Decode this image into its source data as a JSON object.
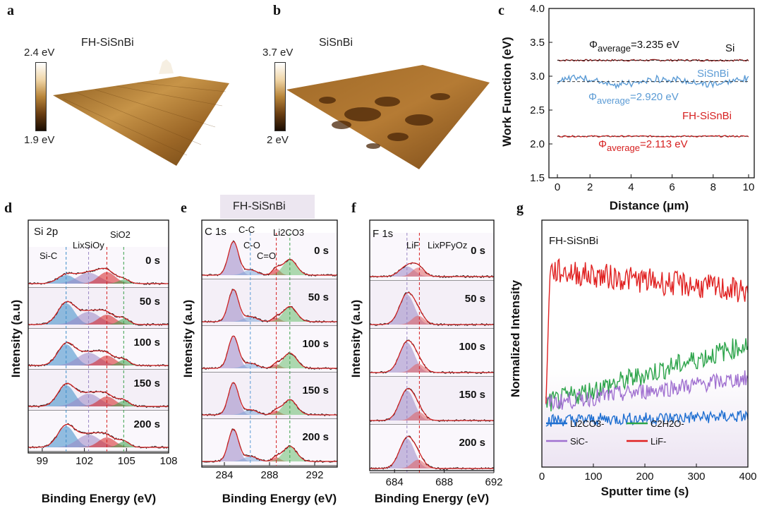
{
  "panels": {
    "a": {
      "letter": "a",
      "title": "FH-SiSnBi",
      "scale_max": "2.4 eV",
      "scale_min": "1.9 eV"
    },
    "b": {
      "letter": "b",
      "title": "SiSnBi",
      "scale_max": "3.7 eV",
      "scale_min": "2 eV"
    },
    "c": {
      "letter": "c"
    },
    "d": {
      "letter": "d"
    },
    "e": {
      "letter": "e",
      "header": "FH-SiSnBi"
    },
    "f": {
      "letter": "f"
    },
    "g": {
      "letter": "g"
    }
  },
  "colors": {
    "si": "#8b1a1a",
    "sisnbi": "#5b9bd5",
    "fh": "#d62020",
    "li2co3": "#1f6fd1",
    "c2h2o": "#2ca44a",
    "sic": "#a070d0",
    "lif": "#e02020"
  },
  "chart_data": [
    {
      "type": "line",
      "panel": "c",
      "xlabel": "Distance (μm)",
      "ylabel": "Work Function (eV)",
      "xlim": [
        0,
        10
      ],
      "ylim": [
        1.5,
        4.0
      ],
      "xticks": [
        "0",
        "2",
        "4",
        "6",
        "8",
        "10"
      ],
      "yticks": [
        "1.5",
        "2.0",
        "2.5",
        "3.0",
        "3.5",
        "4.0"
      ],
      "series": [
        {
          "name": "Si",
          "average": 3.235,
          "average_label_pre": "Φ",
          "average_label_sub": "average",
          "average_label_post": "=3.235 eV"
        },
        {
          "name": "SiSnBi",
          "average": 2.92,
          "average_label_pre": "Φ",
          "average_label_sub": "average",
          "average_label_post": "=2.920 eV"
        },
        {
          "name": "FH-SiSnBi",
          "average": 2.113,
          "average_label_pre": "Φ",
          "average_label_sub": "average",
          "average_label_post": "=2.113 eV"
        }
      ]
    },
    {
      "type": "line",
      "panel": "d",
      "xlabel": "Binding Energy (eV)",
      "ylabel": "Intensity (a.u)",
      "xlim": [
        98,
        108
      ],
      "xticks": [
        "99",
        "102",
        "105",
        "108"
      ],
      "spectrum": "Si 2p",
      "peak_labels": [
        "Si-C",
        "LixSiOy",
        "SiO2"
      ],
      "time_labels": [
        "0 s",
        "50 s",
        "100 s",
        "150 s",
        "200 s"
      ]
    },
    {
      "type": "line",
      "panel": "e",
      "xlabel": "Binding Energy (eV)",
      "ylabel": "Intensity (a.u)",
      "xlim": [
        282,
        294
      ],
      "xticks": [
        "284",
        "288",
        "292"
      ],
      "spectrum": "C 1s",
      "peak_labels": [
        "C-C",
        "C-O",
        "C=O",
        "Li2CO3"
      ],
      "time_labels": [
        "0 s",
        "50 s",
        "100 s",
        "150 s",
        "200 s"
      ]
    },
    {
      "type": "line",
      "panel": "f",
      "xlabel": "Binding Energy (eV)",
      "ylabel": "Intensity (a.u)",
      "xlim": [
        682,
        692
      ],
      "xticks": [
        "684",
        "688",
        "692"
      ],
      "spectrum": "F 1s",
      "peak_labels": [
        "LiF",
        "LixPFyOz"
      ],
      "time_labels": [
        "0 s",
        "50 s",
        "100 s",
        "150 s",
        "200 s"
      ]
    },
    {
      "type": "line",
      "panel": "g",
      "title": "FH-SiSnBi",
      "xlabel": "Sputter time (s)",
      "ylabel": "Normalized Intensity",
      "xlim": [
        0,
        400
      ],
      "xticks": [
        "0",
        "100",
        "200",
        "300",
        "400"
      ],
      "series": [
        {
          "name": "Li2CO3-",
          "level_start": 0.22,
          "level_end": 0.24
        },
        {
          "name": "C2H2O-",
          "level_start": 0.3,
          "level_end": 0.58
        },
        {
          "name": "SiC-",
          "level_start": 0.3,
          "level_end": 0.42
        },
        {
          "name": "LiF-",
          "level_start": 0.93,
          "level_end": 0.83
        }
      ]
    }
  ]
}
